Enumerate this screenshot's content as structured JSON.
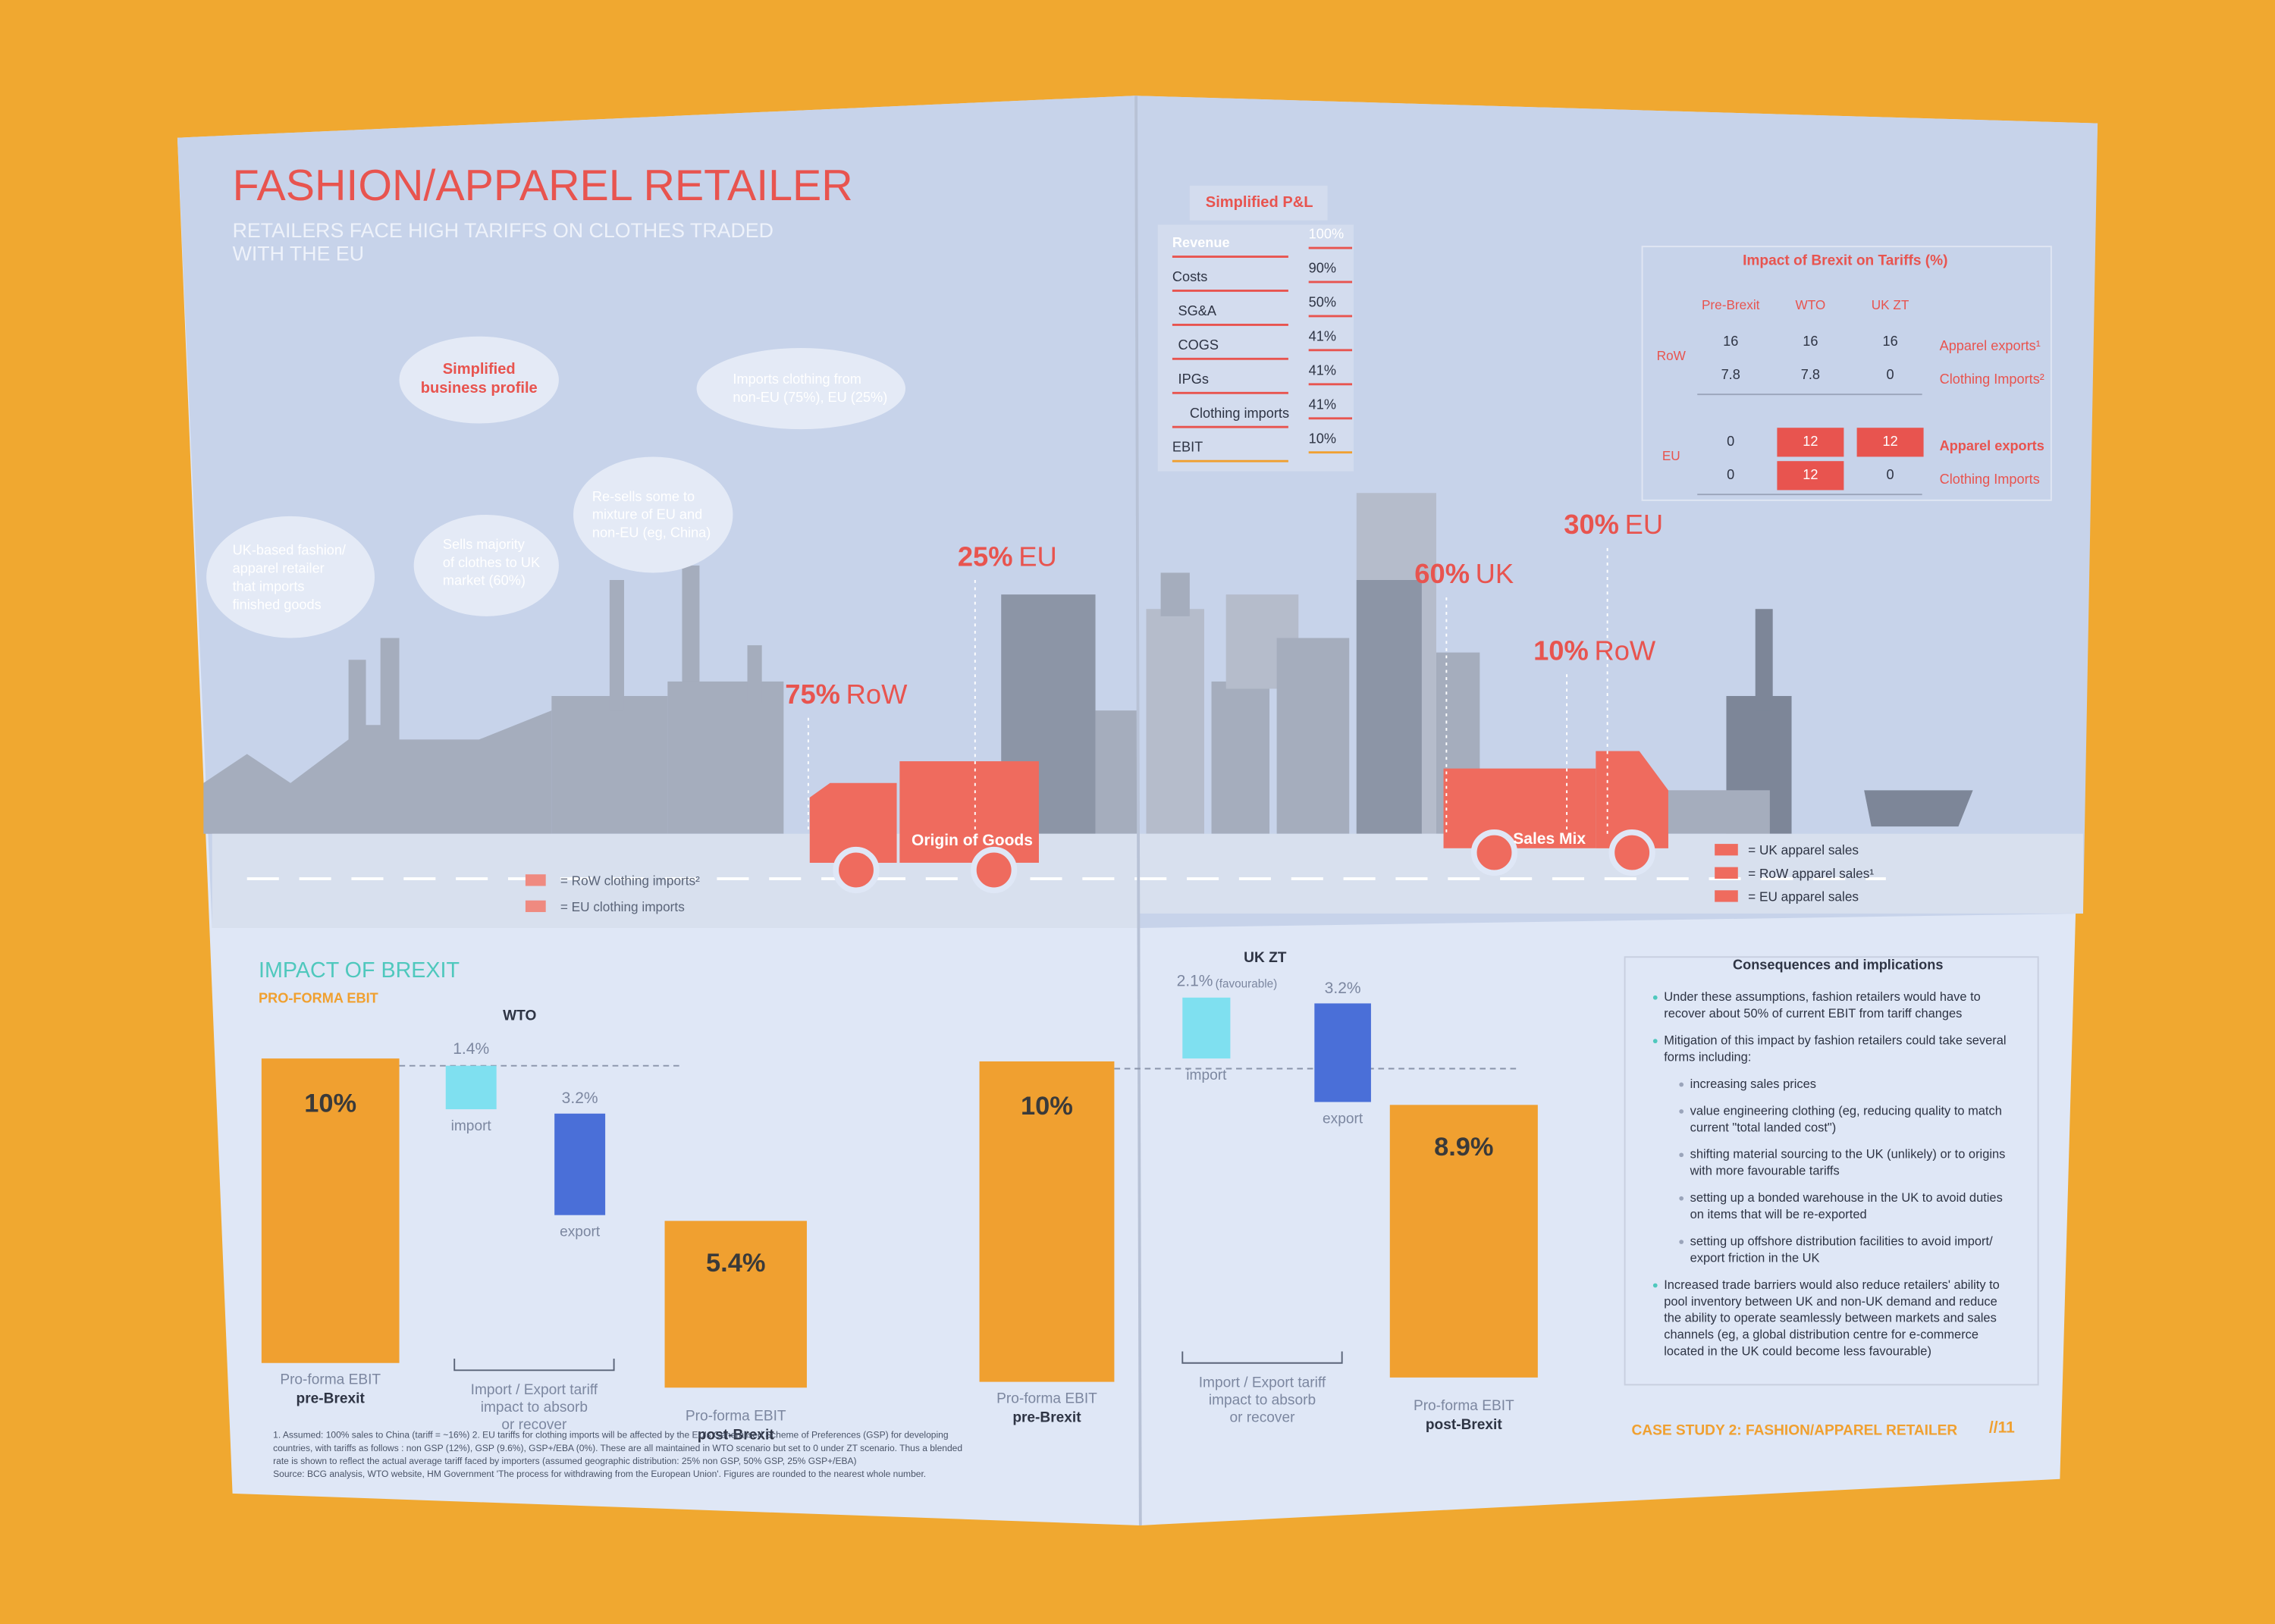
{
  "left": {
    "title": "FASHION/APPAREL RETAILER",
    "subtitle": [
      "RETAILERS FACE HIGH TARIFFS ON CLOTHES TRADED",
      "WITH THE EU"
    ],
    "profile": [
      "Simplified",
      "business profile"
    ],
    "notes": [
      [
        "UK-based fashion/",
        "apparel retailer",
        "that imports",
        "finished goods"
      ],
      [
        "Sells majority",
        "of clothes to UK",
        "market (60%)"
      ],
      [
        "Re-sells some to",
        "mixture of EU and",
        "non-EU (eg, China)"
      ],
      [
        "Imports clothing from",
        "non-EU (75%), EU (25%)"
      ]
    ],
    "origin_shares": [
      {
        "pct": "75%",
        "region": "RoW"
      },
      {
        "pct": "25%",
        "region": "EU"
      }
    ],
    "truck": "Origin of Goods",
    "legend": [
      "= RoW clothing imports²",
      "= EU clothing imports"
    ],
    "impact_title": "IMPACT OF BREXIT",
    "impact_subtitle": "PRO-FORMA EBIT",
    "wto": {
      "heading": "WTO",
      "start": "10%",
      "import": "1.4%",
      "import_label": "import",
      "export": "3.2%",
      "export_label": "export",
      "end": "5.4%",
      "pre": [
        "Pro-forma EBIT",
        "pre-Brexit"
      ],
      "middle": [
        "Import / Export tariff",
        "impact to absorb",
        "or recover"
      ],
      "post": [
        "Pro-forma EBIT",
        "post-Brexit"
      ]
    },
    "footnote": [
      "1. Assumed: 100% sales to China (tariff = ~16%) 2. EU tariffs for clothing imports will be affected by the EU's Generalised Scheme of Preferences (GSP) for developing",
      "countries, with tariffs as follows : non GSP (12%), GSP (9.6%), GSP+/EBA (0%). These are all maintained in WTO scenario but set to 0 under ZT scenario. Thus a blended",
      "rate is shown to reflect the actual average tariff faced by importers (assumed geographic distribution: 25% non GSP, 50% GSP, 25% GSP+/EBA)",
      "Source: BCG analysis, WTO website, HM Government 'The process for withdrawing from the European Union'. Figures are rounded to the nearest whole number."
    ]
  },
  "right": {
    "pnl_title": "Simplified P&L",
    "pnl": [
      [
        "Revenue",
        "100%"
      ],
      [
        "Costs",
        "90%"
      ],
      [
        "SG&A",
        "50%"
      ],
      [
        "COGS",
        "41%"
      ],
      [
        "IPGs",
        "41%"
      ],
      [
        "Clothing imports",
        "41%"
      ],
      [
        "EBIT",
        "10%"
      ]
    ],
    "tariff_title": "Impact of Brexit on Tariffs (%)",
    "tariff_headers": [
      "Pre-Brexit",
      "WTO",
      "UK ZT"
    ],
    "tariff_groups": [
      {
        "region": "RoW",
        "rows": [
          {
            "values": [
              "16",
              "16",
              "16"
            ],
            "label": "Apparel exports¹"
          },
          {
            "values": [
              "7.8",
              "7.8",
              "0"
            ],
            "label": "Clothing Imports²"
          }
        ]
      },
      {
        "region": "EU",
        "rows": [
          {
            "values": [
              "0",
              "12",
              "12"
            ],
            "label": "Apparel exports"
          },
          {
            "values": [
              "0",
              "12",
              "0"
            ],
            "label": "Clothing Imports"
          }
        ]
      }
    ],
    "sales_shares": [
      {
        "pct": "60%",
        "region": "UK"
      },
      {
        "pct": "30%",
        "region": "EU"
      },
      {
        "pct": "10%",
        "region": "RoW"
      }
    ],
    "truck": "Sales Mix",
    "legend": [
      "= UK apparel sales",
      "= RoW apparel sales¹",
      "= EU apparel sales"
    ],
    "ukzt": {
      "heading": "UK ZT",
      "start": "10%",
      "import": "2.1%",
      "import_note": "(favourable)",
      "import_label": "import",
      "export": "3.2%",
      "export_label": "export",
      "end": "8.9%",
      "pre": [
        "Pro-forma EBIT",
        "pre-Brexit"
      ],
      "middle": [
        "Import / Export tariff",
        "impact to absorb",
        "or recover"
      ],
      "post": [
        "Pro-forma EBIT",
        "post-Brexit"
      ]
    },
    "consequences_title": "Consequences and implications",
    "consequences": [
      {
        "level": 1,
        "lines": [
          "Under these assumptions, fashion retailers would have to",
          "recover about 50% of current EBIT from tariff changes"
        ]
      },
      {
        "level": 1,
        "lines": [
          "Mitigation of this impact by fashion retailers could take several",
          "forms including:"
        ]
      },
      {
        "level": 2,
        "lines": [
          "increasing sales prices"
        ]
      },
      {
        "level": 2,
        "lines": [
          "value engineering clothing (eg, reducing quality to match",
          "current \"total landed cost\")"
        ]
      },
      {
        "level": 2,
        "lines": [
          "shifting material sourcing to the UK (unlikely) or to origins",
          "with more favourable tariffs"
        ]
      },
      {
        "level": 2,
        "lines": [
          "setting up a bonded warehouse in the UK to avoid duties",
          "on items that will be re-exported"
        ]
      },
      {
        "level": 2,
        "lines": [
          "setting up offshore distribution facilities to avoid import/",
          "export friction in the UK"
        ]
      },
      {
        "level": 1,
        "lines": [
          "Increased trade barriers would also reduce retailers' ability to",
          "pool inventory between UK and non-UK demand and reduce",
          "the ability to operate seamlessly between markets and sales",
          "channels (eg, a global distribution centre for e-commerce",
          "located in the UK could become less favourable)"
        ]
      }
    ],
    "footer": "CASE STUDY 2: FASHION/APPAREL RETAILER",
    "page": "//11"
  }
}
